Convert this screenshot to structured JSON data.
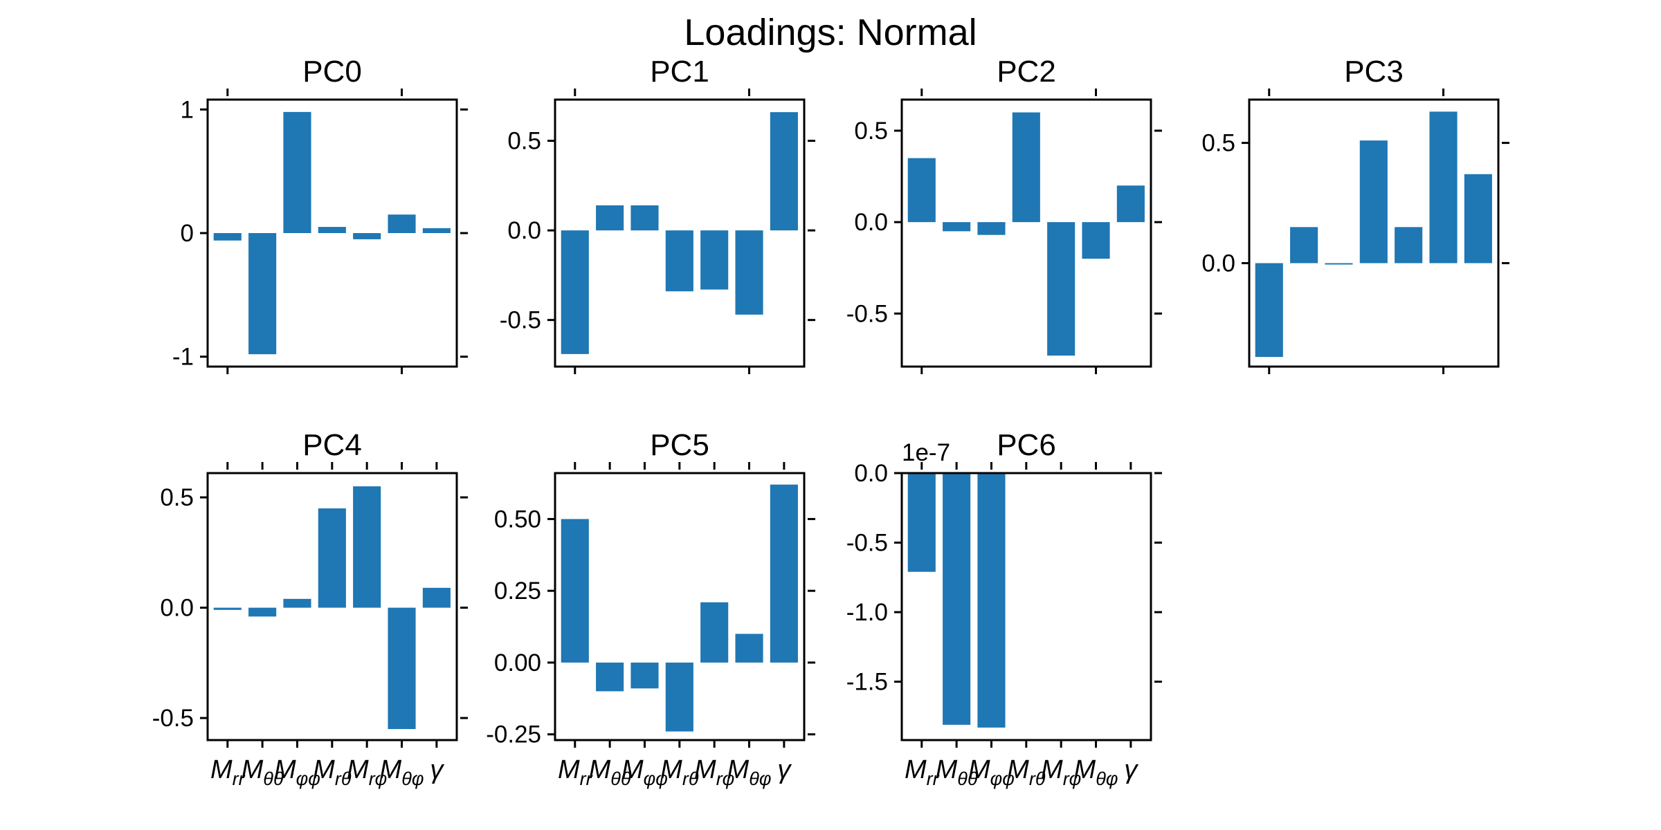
{
  "figure_title": "Loadings: Normal",
  "chart_data": [
    {
      "type": "bar",
      "title": "PC0",
      "categories": [
        "M_rr",
        "M_θθ",
        "M_φφ",
        "M_rθ",
        "M_rφ",
        "M_θφ",
        "γ"
      ],
      "values": [
        -0.06,
        -0.98,
        0.98,
        0.05,
        -0.05,
        0.15,
        0.04
      ],
      "ylim": [
        -1.08,
        1.08
      ],
      "yticks": [
        -1,
        0,
        1
      ],
      "ytick_labels": [
        "-1",
        "0",
        "1"
      ],
      "show_xtick_labels": false
    },
    {
      "type": "bar",
      "title": "PC1",
      "categories": [
        "M_rr",
        "M_θθ",
        "M_φφ",
        "M_rθ",
        "M_rφ",
        "M_θφ",
        "γ"
      ],
      "values": [
        -0.69,
        0.14,
        0.14,
        -0.34,
        -0.33,
        -0.47,
        0.66
      ],
      "ylim": [
        -0.76,
        0.73
      ],
      "yticks": [
        -0.5,
        0.0,
        0.5
      ],
      "ytick_labels": [
        "-0.5",
        "0.0",
        "0.5"
      ],
      "show_xtick_labels": false
    },
    {
      "type": "bar",
      "title": "PC2",
      "categories": [
        "M_rr",
        "M_θθ",
        "M_φφ",
        "M_rθ",
        "M_rφ",
        "M_θφ",
        "γ"
      ],
      "values": [
        0.35,
        -0.05,
        -0.07,
        0.6,
        -0.73,
        -0.2,
        0.2
      ],
      "ylim": [
        -0.79,
        0.67
      ],
      "yticks": [
        -0.5,
        0.0,
        0.5
      ],
      "ytick_labels": [
        "-0.5",
        "0.0",
        "0.5"
      ],
      "show_xtick_labels": false
    },
    {
      "type": "bar",
      "title": "PC3",
      "categories": [
        "M_rr",
        "M_θθ",
        "M_φφ",
        "M_rθ",
        "M_rφ",
        "M_θφ",
        "γ"
      ],
      "values": [
        -0.39,
        0.15,
        -0.005,
        0.51,
        0.15,
        0.63,
        0.37
      ],
      "ylim": [
        -0.43,
        0.68
      ],
      "yticks": [
        0.0,
        0.5
      ],
      "ytick_labels": [
        "0.0",
        "0.5"
      ],
      "show_xtick_labels": false
    },
    {
      "type": "bar",
      "title": "PC4",
      "categories": [
        "M_rr",
        "M_θθ",
        "M_φφ",
        "M_rθ",
        "M_rφ",
        "M_θφ",
        "γ"
      ],
      "values": [
        -0.01,
        -0.04,
        0.04,
        0.45,
        0.55,
        -0.55,
        0.09
      ],
      "ylim": [
        -0.6,
        0.61
      ],
      "yticks": [
        -0.5,
        0.0,
        0.5
      ],
      "ytick_labels": [
        "-0.5",
        "0.0",
        "0.5"
      ],
      "show_xtick_labels": true
    },
    {
      "type": "bar",
      "title": "PC5",
      "categories": [
        "M_rr",
        "M_θθ",
        "M_φφ",
        "M_rθ",
        "M_rφ",
        "M_θφ",
        "γ"
      ],
      "values": [
        0.5,
        -0.1,
        -0.09,
        -0.24,
        0.21,
        0.1,
        0.62
      ],
      "ylim": [
        -0.27,
        0.66
      ],
      "yticks": [
        -0.25,
        0.0,
        0.25,
        0.5
      ],
      "ytick_labels": [
        "-0.25",
        "0.00",
        "0.25",
        "0.50"
      ],
      "show_xtick_labels": true
    },
    {
      "type": "bar",
      "title": "PC6",
      "categories": [
        "M_rr",
        "M_θθ",
        "M_φφ",
        "M_rθ",
        "M_rφ",
        "M_θφ",
        "γ"
      ],
      "values": [
        -0.71,
        -1.81,
        -1.83,
        0,
        0,
        0,
        0
      ],
      "value_scale": "1e-7",
      "ylim": [
        -1.92,
        0.0
      ],
      "yticks": [
        -1.5,
        -1.0,
        -0.5,
        0.0
      ],
      "ytick_labels": [
        "-1.5",
        "-1.0",
        "-0.5",
        "0.0"
      ],
      "offset_label": "1e-7",
      "show_xtick_labels": true
    }
  ],
  "colors": {
    "bar": "#1f77b4",
    "axes": "#000000"
  }
}
